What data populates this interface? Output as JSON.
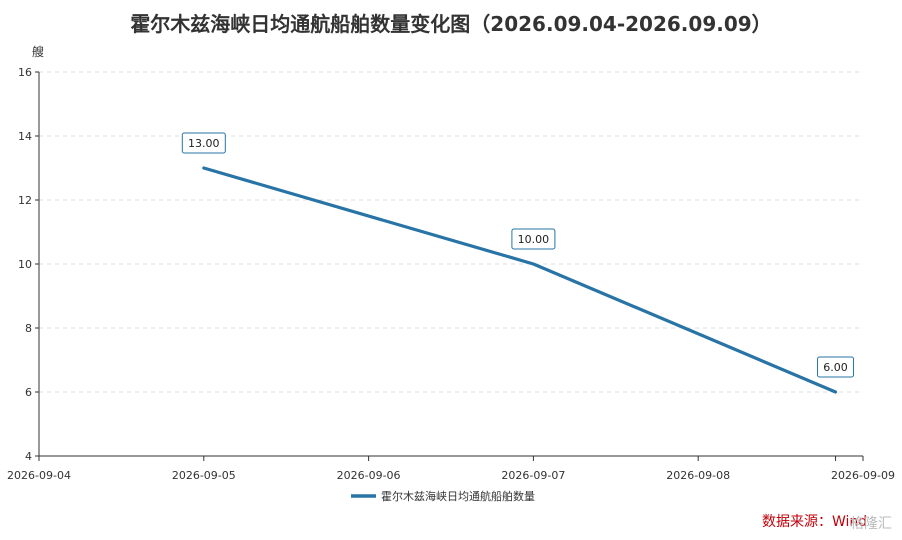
{
  "chart_data": {
    "type": "line",
    "title": "霍尔木兹海峡日均通航船舶数量变化图（2026.09.04-2026.09.09）",
    "ylabel": "艘",
    "xlabel": "",
    "x_ticks": [
      "2026-09-04",
      "2026-09-05",
      "2026-09-06",
      "2026-09-07",
      "2026-09-08",
      "2026-09-09"
    ],
    "ylim": [
      4,
      16
    ],
    "y_ticks": [
      4,
      6,
      8,
      10,
      12,
      14,
      16
    ],
    "grid": true,
    "legend_position": "bottom",
    "series": [
      {
        "name": "霍尔木兹海峡日均通航船舶数量",
        "color": "#2874a6",
        "points": [
          {
            "x": "2026-09-05",
            "y": 13.0,
            "label": "13.00"
          },
          {
            "x": "2026-09-07",
            "y": 10.0,
            "label": "10.00"
          },
          {
            "x": "2026-09-08 20:00",
            "y": 6.0,
            "label": "6.00"
          }
        ]
      }
    ]
  },
  "footer": {
    "source_text": "数据来源：Wind",
    "watermark_text": "格隆汇"
  }
}
